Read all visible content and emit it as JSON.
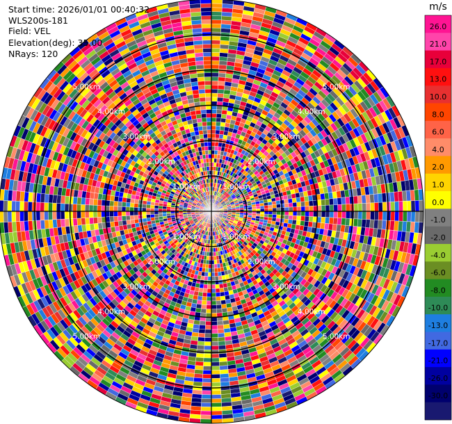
{
  "info": {
    "start_time": "Start time: 2026/01/01 00:40:32",
    "instrument": "WLS200s-181",
    "field": "Field: VEL",
    "elevation": "Elevation(deg): 35.00",
    "nrays": "NRays: 120"
  },
  "chart_data": {
    "type": "heatmap",
    "projection": "polar-ppi",
    "field": "VEL",
    "units": "m/s",
    "elevation_deg": 35.0,
    "n_rays": 120,
    "range_rings_km": [
      1.0,
      2.0,
      3.0,
      4.0,
      5.0
    ],
    "range_ring_labels": [
      "1.00km",
      "2.00km",
      "3.00km",
      "4.00km",
      "5.00km"
    ],
    "max_range_km": 6.0,
    "grid": true,
    "colorbar": {
      "label": "m/s",
      "placement": "right",
      "ticks": [
        "26.0",
        "21.0",
        "17.0",
        "13.0",
        "10.0",
        "8.0",
        "6.0",
        "4.0",
        "2.0",
        "1.0",
        "0.0",
        "-1.0",
        "-2.0",
        "-4.0",
        "-6.0",
        "-8.0",
        "-10.0",
        "-13.0",
        "-17.0",
        "-21.0",
        "-26.0",
        "-30.0"
      ],
      "colors": [
        "#ff1493",
        "#ff44aa",
        "#e8003a",
        "#ff1010",
        "#e83030",
        "#ff4500",
        "#ff6347",
        "#ff8c69",
        "#ff9900",
        "#ffd400",
        "#ffff00",
        "#808080",
        "#6a6a6a",
        "#9acd32",
        "#6b8e23",
        "#228b22",
        "#2e8b57",
        "#1e7ee0",
        "#4169e1",
        "#0000ff",
        "#0000a0",
        "#00006e",
        "#191970"
      ]
    }
  }
}
